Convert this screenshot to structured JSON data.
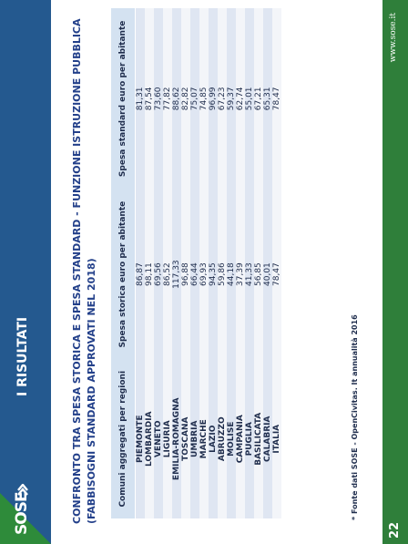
{
  "header": {
    "logo_text": "SOSE",
    "section_title": "I RISULTATI",
    "colors": {
      "header": "#24598f",
      "accent": "#2e8b3a",
      "title": "#23408a"
    }
  },
  "title": {
    "line1": "CONFRONTO TRA SPESA STORICA E SPESA STANDARD - FUNZIONE ISTRUZIONE PUBBLICA",
    "line2": "(FABBISOGNI STANDARD APPROVATI NEL 2018)"
  },
  "table": {
    "headers": [
      "Comuni aggregati per regioni",
      "Spesa storica euro per abitante",
      "Spesa standard euro per abitante"
    ],
    "rows": [
      [
        "PIEMONTE",
        "86,87",
        "81,31"
      ],
      [
        "LOMBARDIA",
        "98,11",
        "87,54"
      ],
      [
        "VENETO",
        "69,56",
        "73,60"
      ],
      [
        "LIGURIA",
        "86,52",
        "77,82"
      ],
      [
        "EMILIA-ROMAGNA",
        "117,33",
        "88,62"
      ],
      [
        "TOSCANA",
        "96,88",
        "82,82"
      ],
      [
        "UMBRIA",
        "66,44",
        "75,07"
      ],
      [
        "MARCHE",
        "69,93",
        "74,85"
      ],
      [
        "LAZIO",
        "94,35",
        "96,99"
      ],
      [
        "ABRUZZO",
        "59,86",
        "67,23"
      ],
      [
        "MOLISE",
        "44,18",
        "59,37"
      ],
      [
        "CAMPANIA",
        "37,39",
        "62,74"
      ],
      [
        "PUGLIA",
        "41,33",
        "55,01"
      ],
      [
        "BASILICATA",
        "56,85",
        "67,21"
      ],
      [
        "CALABRIA",
        "40,01",
        "65,31"
      ],
      [
        "ITALIA",
        "78,47",
        "78,47"
      ]
    ]
  },
  "footnote": "* Fonte dati SOSE - OpenCivitas. It annualità 2016",
  "footer": {
    "page_number": "22",
    "website": "www.sose.it"
  }
}
